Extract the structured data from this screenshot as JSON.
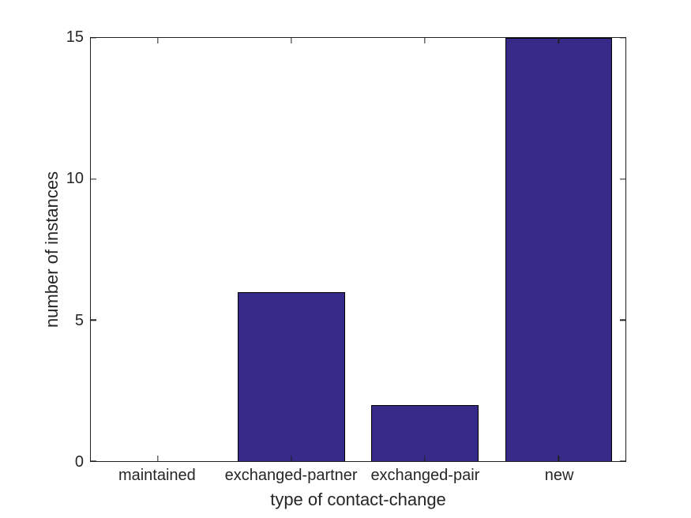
{
  "chart_data": {
    "type": "bar",
    "categories": [
      "maintained",
      "exchanged-partner",
      "exchanged-pair",
      "new"
    ],
    "values": [
      0,
      6,
      2,
      15
    ],
    "xlabel": "type of contact-change",
    "ylabel": "number of instances",
    "ylim": [
      0,
      15
    ],
    "yticks": [
      0,
      5,
      10,
      15
    ],
    "bar_width_fraction": 0.8,
    "bar_color": "#352A87",
    "bar_edge_color": "#000000",
    "axis_color": "#1f1f1f",
    "text_color": "#262626",
    "grid": false,
    "box": true,
    "tick_direction": "in",
    "legend": "none"
  }
}
